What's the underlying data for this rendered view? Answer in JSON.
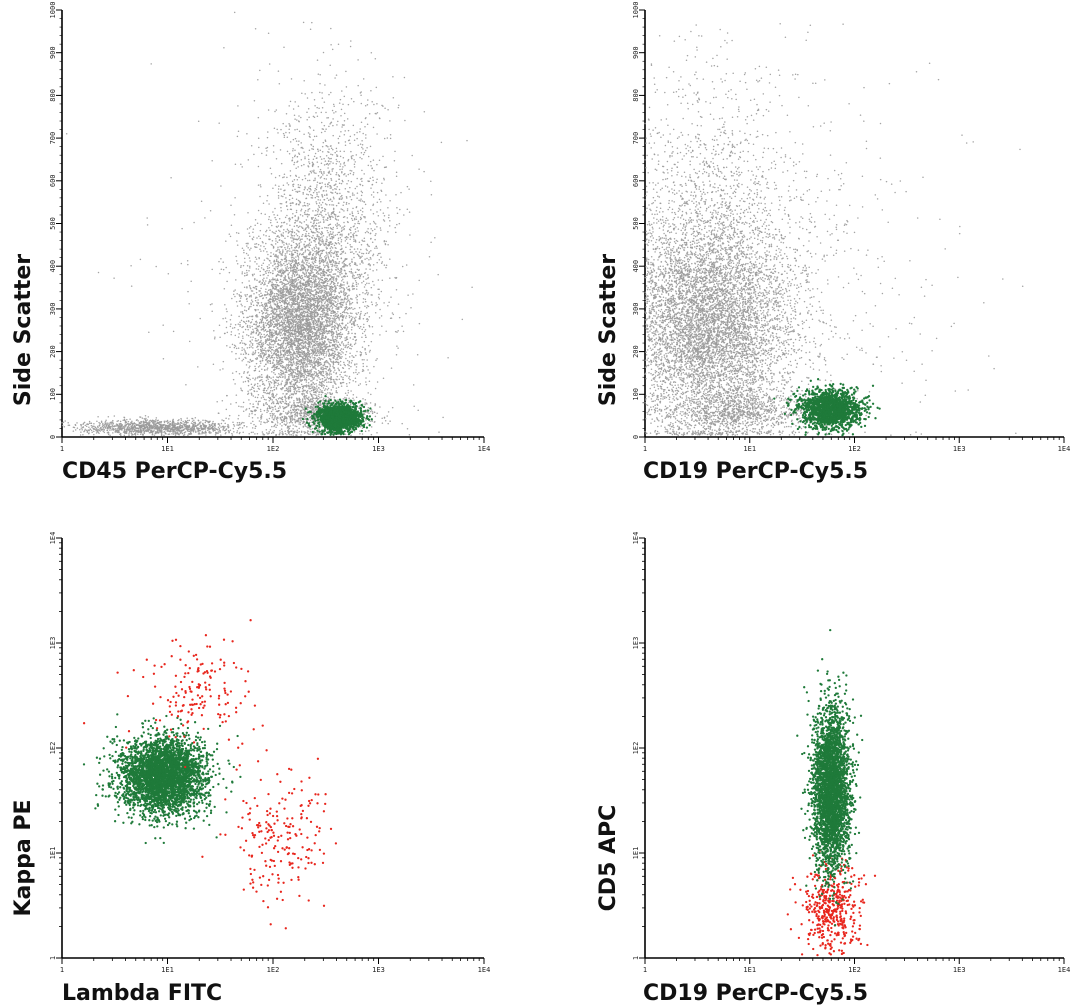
{
  "chart_data": [
    {
      "type": "scatter",
      "xlabel": "CD45 PerCP-Cy5.5",
      "ylabel": "Side Scatter",
      "x_scale": "log",
      "xlim": [
        1,
        10000
      ],
      "x_ticks": [
        "1",
        "1E1",
        "1E2",
        "1E3",
        "1E4"
      ],
      "y_scale": "linear",
      "ylim": [
        0,
        1000
      ],
      "y_ticks": [
        "0",
        "100",
        "200",
        "300",
        "400",
        "500",
        "600",
        "700",
        "800",
        "900",
        "1000"
      ],
      "colors": {
        "background_events": "#9a9a9a",
        "gated": "#1f7a3a"
      },
      "clusters": [
        {
          "group": "background_events",
          "n": 5500,
          "x_center": 180,
          "x_spread_log": 0.26,
          "y_center": 260,
          "y_spread": 110
        },
        {
          "group": "background_events",
          "n": 1800,
          "x_center": 350,
          "x_spread_log": 0.3,
          "y_center": 480,
          "y_spread": 170
        },
        {
          "group": "background_events",
          "n": 1300,
          "x_center": 8,
          "x_spread_log": 0.38,
          "y_center": 22,
          "y_spread": 9
        },
        {
          "group": "background_events",
          "n": 700,
          "x_center": 250,
          "x_spread_log": 0.3,
          "y_center": 55,
          "y_spread": 20
        },
        {
          "group": "background_events",
          "n": 250,
          "x_center": 120,
          "x_spread_log": 0.7,
          "y_center": 350,
          "y_spread": 260
        },
        {
          "group": "gated",
          "n": 1700,
          "x_center": 420,
          "x_spread_log": 0.1,
          "y_center": 45,
          "y_spread": 15
        }
      ]
    },
    {
      "type": "scatter",
      "xlabel": "CD19 PerCP-Cy5.5",
      "ylabel": "Side Scatter",
      "x_scale": "log",
      "xlim": [
        1,
        10000
      ],
      "x_ticks": [
        "1",
        "1E1",
        "1E2",
        "1E3",
        "1E4"
      ],
      "y_scale": "linear",
      "ylim": [
        0,
        1000
      ],
      "y_ticks": [
        "0",
        "100",
        "200",
        "300",
        "400",
        "500",
        "600",
        "700",
        "800",
        "900",
        "1000"
      ],
      "colors": {
        "background_events": "#9a9a9a",
        "gated": "#1f7a3a"
      },
      "clusters": [
        {
          "group": "background_events",
          "n": 6500,
          "x_center": 4,
          "x_spread_log": 0.42,
          "y_center": 260,
          "y_spread": 120
        },
        {
          "group": "background_events",
          "n": 1600,
          "x_center": 4,
          "x_spread_log": 0.42,
          "y_center": 500,
          "y_spread": 180
        },
        {
          "group": "background_events",
          "n": 1000,
          "x_center": 8,
          "x_spread_log": 0.4,
          "y_center": 60,
          "y_spread": 25
        },
        {
          "group": "background_events",
          "n": 300,
          "x_center": 60,
          "x_spread_log": 0.7,
          "y_center": 400,
          "y_spread": 260
        },
        {
          "group": "gated",
          "n": 1600,
          "x_center": 60,
          "x_spread_log": 0.14,
          "y_center": 65,
          "y_spread": 22
        }
      ]
    },
    {
      "type": "scatter",
      "xlabel": "Lambda FITC",
      "ylabel": "Kappa PE",
      "x_scale": "log",
      "xlim": [
        1,
        10000
      ],
      "x_ticks": [
        "1",
        "1E1",
        "1E2",
        "1E3",
        "1E4"
      ],
      "y_scale": "log",
      "ylim": [
        1,
        10000
      ],
      "y_ticks": [
        "1",
        "1E1",
        "1E2",
        "1E3",
        "1E4"
      ],
      "colors": {
        "kappa_population": "#1f7a3a",
        "lambda_population": "#e8271e"
      },
      "clusters": [
        {
          "group": "kappa_population",
          "n": 3500,
          "x_center": 9,
          "x_spread_log": 0.2,
          "y_center": 55,
          "y_spread_log": 0.18
        },
        {
          "group": "lambda_population",
          "n": 160,
          "x_center": 18,
          "x_spread_log": 0.28,
          "y_center": 350,
          "y_spread_log": 0.25
        },
        {
          "group": "lambda_population",
          "n": 200,
          "x_center": 120,
          "x_spread_log": 0.24,
          "y_center": 15,
          "y_spread_log": 0.32
        }
      ]
    },
    {
      "type": "scatter",
      "xlabel": "CD19 PerCP-Cy5.5",
      "ylabel": "CD5 APC",
      "x_scale": "log",
      "xlim": [
        1,
        10000
      ],
      "x_ticks": [
        "1",
        "1E1",
        "1E2",
        "1E3",
        "1E4"
      ],
      "y_scale": "log",
      "ylim": [
        1,
        10000
      ],
      "y_ticks": [
        "1",
        "1E1",
        "1E2",
        "1E3",
        "1E4"
      ],
      "colors": {
        "cd5_negative": "#e8271e",
        "cd5_positive": "#1f7a3a"
      },
      "clusters": [
        {
          "group": "cd5_negative",
          "n": 450,
          "x_center": 60,
          "x_spread_log": 0.13,
          "y_center": 3,
          "y_spread_log": 0.22
        },
        {
          "group": "cd5_positive",
          "n": 3200,
          "x_center": 60,
          "x_spread_log": 0.09,
          "y_center": 40,
          "y_spread_log": 0.38
        }
      ]
    }
  ]
}
